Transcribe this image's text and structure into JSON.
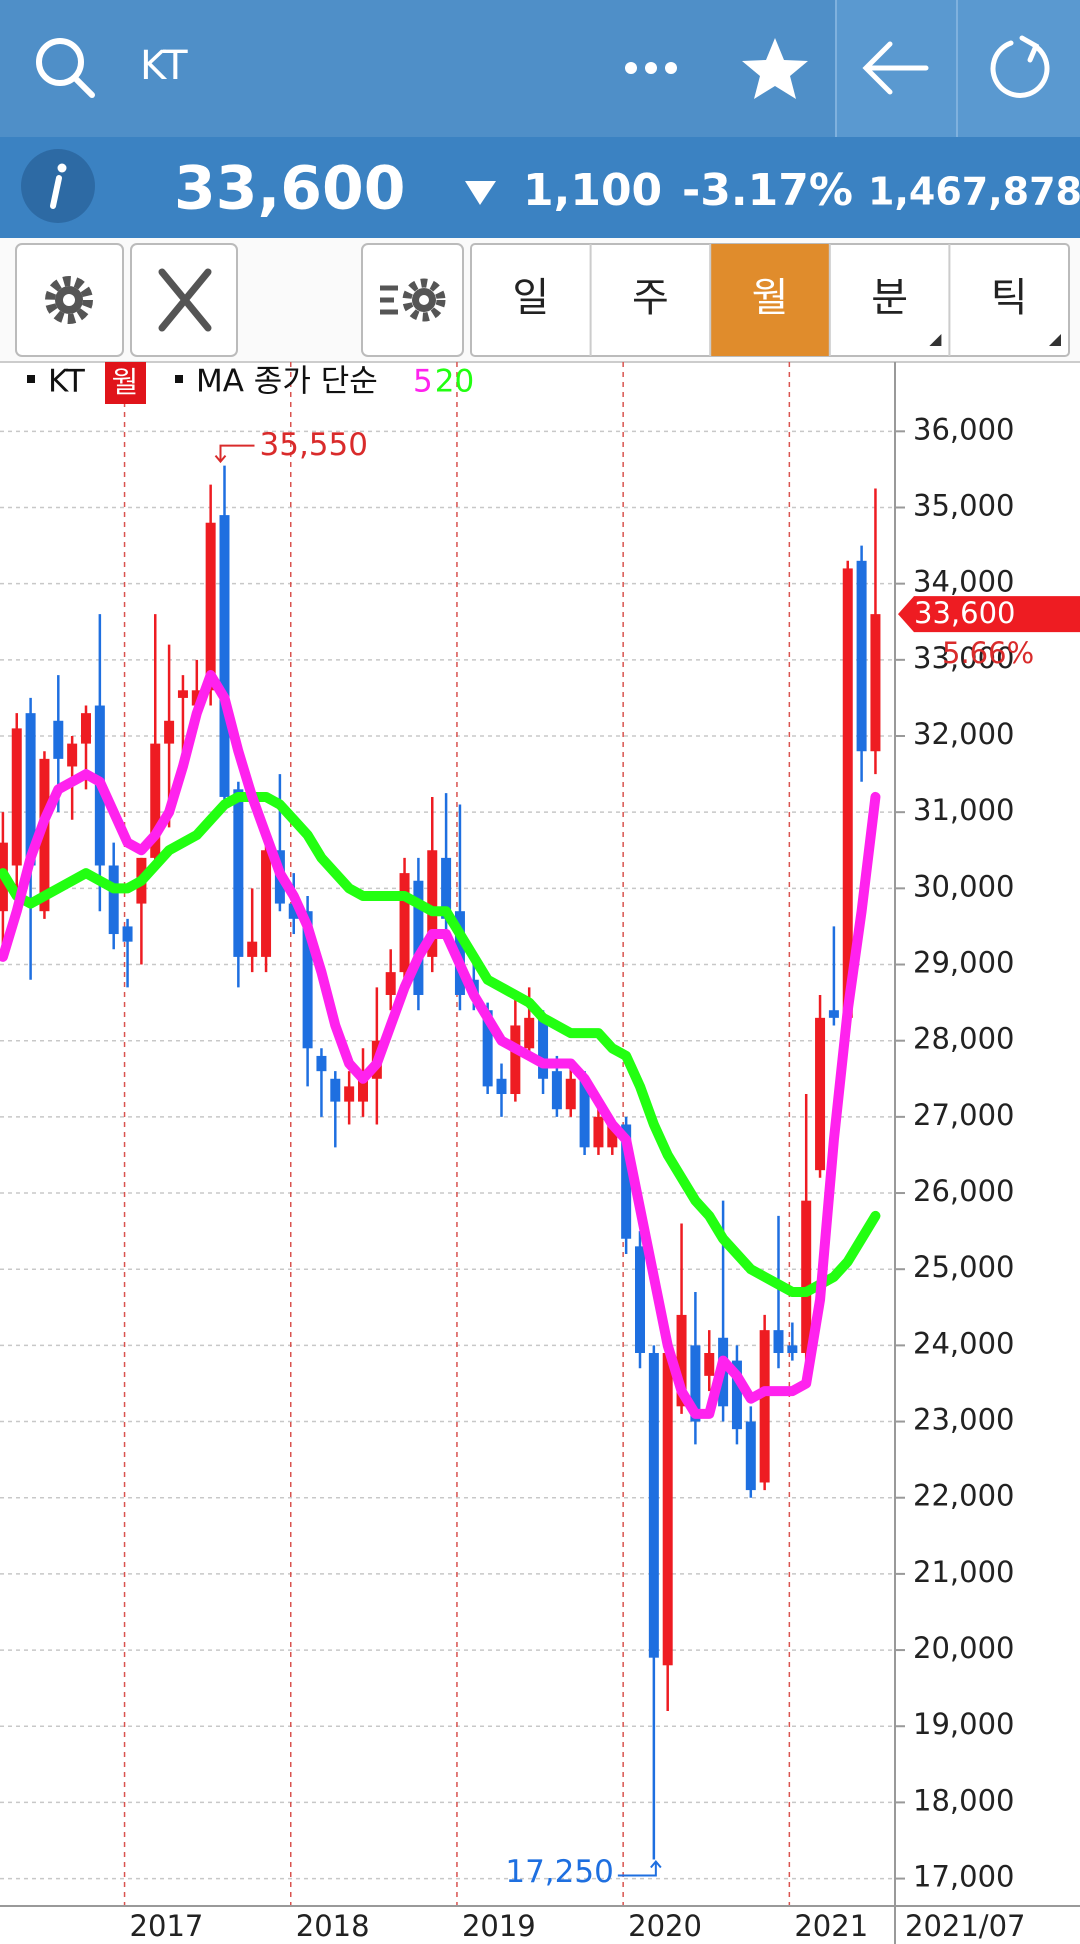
{
  "header": {
    "symbol": "KT"
  },
  "quote": {
    "price": "33,600",
    "change": "1,100",
    "change_pct": "-3.17%",
    "volume": "1,467,878"
  },
  "period_tabs": [
    "일",
    "주",
    "월",
    "분",
    "틱"
  ],
  "active_tab": 2,
  "chart_data": {
    "type": "candlestick",
    "legend_symbol": "KT",
    "legend_ma": "MA 종가 단순",
    "up_color": "#ee1c22",
    "down_color": "#1e6fe0",
    "categories": [
      null,
      null,
      null,
      null,
      null,
      null,
      null,
      null,
      null,
      "2017",
      null,
      null,
      null,
      null,
      null,
      null,
      null,
      null,
      null,
      null,
      null,
      "2018",
      null,
      null,
      null,
      null,
      null,
      null,
      null,
      null,
      null,
      null,
      null,
      "2019",
      null,
      null,
      null,
      null,
      null,
      null,
      null,
      null,
      null,
      null,
      null,
      "2020",
      null,
      null,
      null,
      null,
      null,
      null,
      null,
      null,
      null,
      null,
      null,
      "2021",
      null,
      null,
      null,
      null,
      null,
      null
    ],
    "open": [
      29700,
      30300,
      32300,
      29700,
      32200,
      31600,
      31900,
      32400,
      30300,
      29500,
      29800,
      30400,
      31900,
      32500,
      32400,
      32600,
      34900,
      31300,
      29100,
      29100,
      30500,
      29800,
      29700,
      27800,
      27500,
      27200,
      27200,
      27500,
      28600,
      28900,
      30100,
      29100,
      30400,
      29700,
      28800,
      28400,
      27500,
      27300,
      27900,
      28300,
      27600,
      27100,
      27500,
      26600,
      26600,
      26900,
      25300,
      23900,
      19800,
      23200,
      24000,
      23600,
      24100,
      23800,
      23000,
      22200,
      24200,
      24000,
      23900,
      26300,
      28400,
      28300,
      34300,
      31800
    ],
    "high": [
      31000,
      32300,
      32500,
      31800,
      32800,
      32000,
      32400,
      33600,
      30600,
      29600,
      30400,
      33600,
      33200,
      32800,
      33000,
      35300,
      35550,
      31400,
      30000,
      30800,
      31500,
      30200,
      29900,
      27900,
      27600,
      27600,
      27900,
      28700,
      29200,
      30400,
      30400,
      31200,
      31250,
      31100,
      29000,
      28500,
      27700,
      28600,
      28700,
      28400,
      27800,
      27700,
      27600,
      27100,
      27000,
      27000,
      25500,
      24000,
      24000,
      25600,
      24700,
      24200,
      25900,
      24000,
      23200,
      24400,
      25700,
      24300,
      27300,
      28600,
      29500,
      34300,
      34500,
      35250
    ],
    "low": [
      29200,
      29700,
      28800,
      29600,
      31000,
      30900,
      31300,
      29700,
      29200,
      28700,
      29000,
      30300,
      30800,
      31500,
      32100,
      32400,
      31100,
      28700,
      28900,
      28900,
      29700,
      29400,
      27400,
      27000,
      26600,
      26900,
      27000,
      26900,
      28400,
      28800,
      28400,
      28900,
      29300,
      28400,
      28400,
      27300,
      27000,
      27200,
      27800,
      27300,
      27000,
      27000,
      26500,
      26500,
      26500,
      25200,
      23700,
      17250,
      19200,
      23100,
      22700,
      23400,
      23000,
      22700,
      22000,
      22100,
      23700,
      23800,
      23800,
      26200,
      28200,
      28100,
      31400,
      31500
    ],
    "close": [
      30600,
      32100,
      30300,
      31700,
      31700,
      31900,
      32300,
      30300,
      29400,
      29300,
      30400,
      31900,
      32200,
      32600,
      32600,
      34800,
      31200,
      29100,
      29300,
      30500,
      29800,
      29600,
      27900,
      27600,
      27200,
      27400,
      27600,
      28000,
      28900,
      30200,
      28600,
      30500,
      29600,
      28600,
      28600,
      27400,
      27300,
      28200,
      28300,
      27500,
      27100,
      27500,
      26600,
      27000,
      26900,
      25400,
      23900,
      19900,
      23900,
      24400,
      23000,
      23900,
      23200,
      22900,
      22100,
      24200,
      23900,
      23900,
      25900,
      28300,
      28300,
      34200,
      31800,
      33600
    ],
    "series": [
      {
        "name": "5",
        "color": "#ff22ee",
        "values": [
          29100,
          29700,
          30400,
          30900,
          31300,
          31400,
          31500,
          31400,
          31000,
          30600,
          30500,
          30700,
          31000,
          31600,
          32300,
          32800,
          32500,
          31800,
          31200,
          30700,
          30200,
          29900,
          29500,
          28900,
          28200,
          27700,
          27500,
          27700,
          28200,
          28700,
          29100,
          29400,
          29400,
          29000,
          28600,
          28300,
          28000,
          27900,
          27800,
          27700,
          27700,
          27700,
          27500,
          27200,
          26900,
          26700,
          25800,
          24900,
          24000,
          23400,
          23100,
          23100,
          23800,
          23600,
          23300,
          23400,
          23400,
          23400,
          23500,
          24600,
          26700,
          28400,
          29700,
          31200
        ]
      },
      {
        "name": "20",
        "color": "#22ff11",
        "values": [
          30200,
          29900,
          29800,
          29900,
          30000,
          30100,
          30200,
          30100,
          30000,
          30000,
          30100,
          30300,
          30500,
          30600,
          30700,
          30900,
          31100,
          31200,
          31200,
          31200,
          31100,
          30900,
          30700,
          30400,
          30200,
          30000,
          29900,
          29900,
          29900,
          29900,
          29800,
          29700,
          29700,
          29400,
          29100,
          28800,
          28700,
          28600,
          28500,
          28300,
          28200,
          28100,
          28100,
          28100,
          27900,
          27800,
          27400,
          26900,
          26500,
          26200,
          25900,
          25700,
          25400,
          25200,
          25000,
          24900,
          24800,
          24700,
          24700,
          24800,
          24900,
          25100,
          25400,
          25700
        ]
      }
    ],
    "ylim": [
      16640,
      36910
    ],
    "yticks": [
      {
        "value": 17000,
        "label": "17,000"
      },
      {
        "value": 18000,
        "label": "18,000"
      },
      {
        "value": 19000,
        "label": "19,000"
      },
      {
        "value": 20000,
        "label": "20,000"
      },
      {
        "value": 21000,
        "label": "21,000"
      },
      {
        "value": 22000,
        "label": "22,000"
      },
      {
        "value": 23000,
        "label": "23,000"
      },
      {
        "value": 24000,
        "label": "24,000"
      },
      {
        "value": 25000,
        "label": "25,000"
      },
      {
        "value": 26000,
        "label": "26,000"
      },
      {
        "value": 27000,
        "label": "27,000"
      },
      {
        "value": 28000,
        "label": "28,000"
      },
      {
        "value": 29000,
        "label": "29,000"
      },
      {
        "value": 30000,
        "label": "30,000"
      },
      {
        "value": 31000,
        "label": "31,000"
      },
      {
        "value": 32000,
        "label": "32,000"
      },
      {
        "value": 33000,
        "label": "33,000"
      },
      {
        "value": 34000,
        "label": "34,000"
      },
      {
        "value": 35000,
        "label": "35,000"
      },
      {
        "value": 36000,
        "label": "36,000"
      }
    ],
    "grid": true,
    "high_label": {
      "value": 35550,
      "label": "35,550"
    },
    "low_label": {
      "value": 17250,
      "label": "17,250"
    },
    "last_price": {
      "value": 33600,
      "label": "33,600"
    },
    "last_price_pct": "5.66%",
    "current_date": "2021/07"
  }
}
